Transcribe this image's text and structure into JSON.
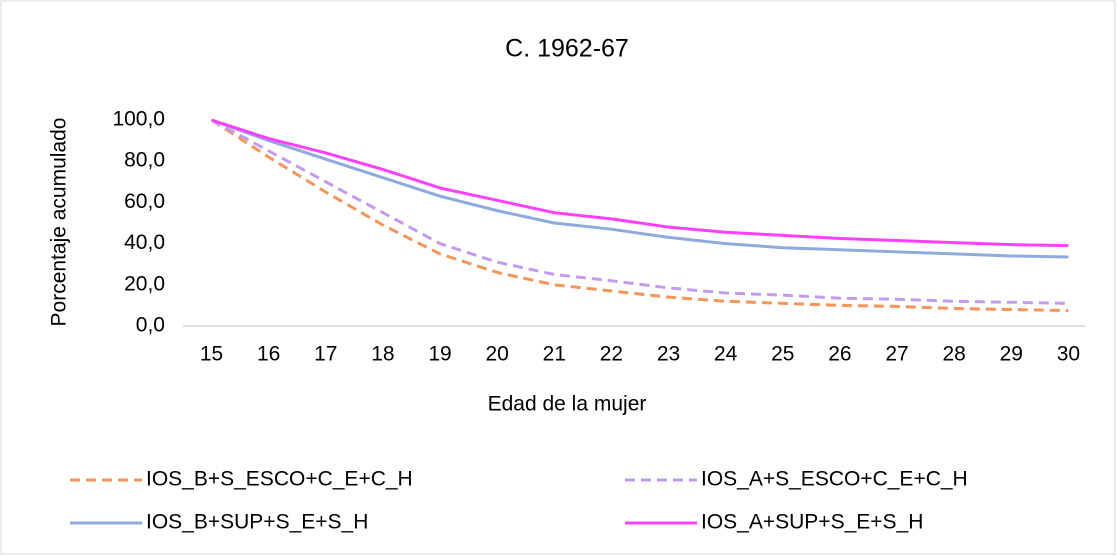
{
  "chart_data": {
    "type": "line",
    "title": "C. 1962-67",
    "x_label": "Edad de la mujer",
    "y_label": "Porcentaje acumulado",
    "categories": [
      "15",
      "16",
      "17",
      "18",
      "19",
      "20",
      "21",
      "22",
      "23",
      "24",
      "25",
      "26",
      "27",
      "28",
      "29",
      "30"
    ],
    "series": [
      {
        "name": "IOS_B+S_ESCO+C_E+C_H",
        "color": "#f4955a",
        "style": "dashed",
        "values": [
          100,
          82,
          65,
          49,
          35,
          26,
          20,
          17,
          14,
          12,
          11,
          10,
          9.5,
          8.5,
          8,
          7.5
        ]
      },
      {
        "name": "IOS_A+S_ESCO+C_E+C_H",
        "color": "#c39bf0",
        "style": "dashed",
        "values": [
          100,
          85,
          70,
          55,
          40,
          31,
          25,
          22,
          18.5,
          16,
          15,
          13.5,
          13,
          12,
          11.5,
          11
        ]
      },
      {
        "name": "IOS_B+SUP+S_E+S_H",
        "color": "#8faadc",
        "style": "solid",
        "values": [
          100,
          90,
          81,
          72,
          63,
          56,
          50,
          47,
          43,
          40,
          38,
          37,
          36,
          35,
          34,
          33.5
        ]
      },
      {
        "name": "IOS_A+SUP+S_E+S_H",
        "color": "#ff40ff",
        "style": "solid",
        "values": [
          100,
          91,
          84,
          76,
          67,
          61,
          55,
          52,
          48,
          45.5,
          44,
          42.5,
          41.5,
          40.5,
          39.5,
          39
        ]
      }
    ],
    "ylim": [
      0,
      100
    ],
    "yticks": [
      {
        "value": 0,
        "label": "0,0"
      },
      {
        "value": 20,
        "label": "20,0"
      },
      {
        "value": 40,
        "label": "40,0"
      },
      {
        "value": 60,
        "label": "60,0"
      },
      {
        "value": 80,
        "label": "80,0"
      },
      {
        "value": 100,
        "label": "100,0"
      }
    ],
    "grid": false,
    "legend": "bottom"
  }
}
